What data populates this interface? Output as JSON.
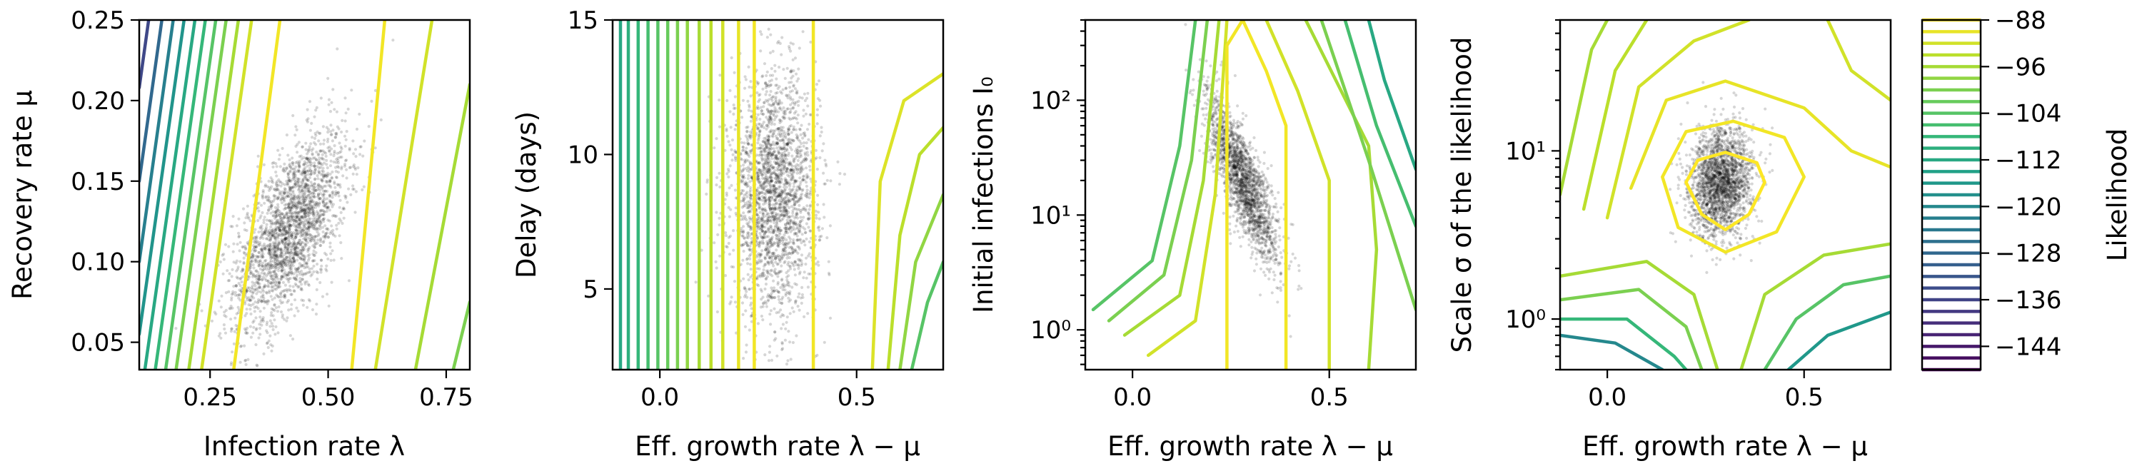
{
  "chart_data": [
    {
      "type": "scatter",
      "xlabel": "Infection rate λ",
      "ylabel": "Recovery rate μ",
      "xlim": [
        0.1,
        0.8
      ],
      "ylim": [
        0.033,
        0.25
      ],
      "xscale": "linear",
      "yscale": "linear",
      "xticks": [
        0.25,
        0.5,
        0.75
      ],
      "xtick_labels": [
        "0.25",
        "0.50",
        "0.75"
      ],
      "yticks": [
        0.05,
        0.1,
        0.15,
        0.2,
        0.25
      ],
      "ytick_labels": [
        "0.05",
        "0.10",
        "0.15",
        "0.20",
        "0.25"
      ],
      "samples": {
        "center": [
          0.42,
          0.12
        ],
        "spread": [
          0.06,
          0.03
        ],
        "correlation": 0.6,
        "count": 2400
      },
      "contours": [
        {
          "level": -135,
          "points": [
            [
              0.1,
              0.208
            ],
            [
              0.12,
              0.25
            ]
          ]
        },
        {
          "level": -128,
          "points": [
            [
              0.1,
              0.15
            ],
            [
              0.148,
              0.25
            ]
          ]
        },
        {
          "level": -122,
          "points": [
            [
              0.1,
              0.1
            ],
            [
              0.172,
              0.25
            ]
          ]
        },
        {
          "level": -117,
          "points": [
            [
              0.1,
              0.055
            ],
            [
              0.195,
              0.25
            ]
          ]
        },
        {
          "level": -112,
          "points": [
            [
              0.112,
              0.033
            ],
            [
              0.218,
              0.25
            ]
          ]
        },
        {
          "level": -108,
          "points": [
            [
              0.134,
              0.033
            ],
            [
              0.24,
              0.25
            ]
          ]
        },
        {
          "level": -104,
          "points": [
            [
              0.156,
              0.033
            ],
            [
              0.262,
              0.25
            ]
          ]
        },
        {
          "level": -100,
          "points": [
            [
              0.178,
              0.033
            ],
            [
              0.284,
              0.25
            ]
          ]
        },
        {
          "level": -96,
          "points": [
            [
              0.205,
              0.033
            ],
            [
              0.31,
              0.25
            ]
          ]
        },
        {
          "level": -92,
          "points": [
            [
              0.232,
              0.033
            ],
            [
              0.338,
              0.25
            ]
          ]
        },
        {
          "level": -89,
          "points": [
            [
              0.3,
              0.033
            ],
            [
              0.398,
              0.25
            ]
          ]
        },
        {
          "level": -89,
          "points": [
            [
              0.55,
              0.033
            ],
            [
              0.62,
              0.25
            ]
          ]
        },
        {
          "level": -92,
          "points": [
            [
              0.6,
              0.033
            ],
            [
              0.72,
              0.25
            ]
          ]
        },
        {
          "level": -96,
          "points": [
            [
              0.685,
              0.033
            ],
            [
              0.8,
              0.21
            ]
          ]
        },
        {
          "level": -100,
          "points": [
            [
              0.765,
              0.033
            ],
            [
              0.8,
              0.075
            ]
          ]
        }
      ]
    },
    {
      "type": "scatter",
      "xlabel": "Eff. growth rate λ − μ",
      "ylabel": "Delay (days)",
      "xlim": [
        -0.12,
        0.72
      ],
      "ylim": [
        2,
        15
      ],
      "xscale": "linear",
      "yscale": "linear",
      "xticks": [
        0.0,
        0.5
      ],
      "xtick_labels": [
        "0.0",
        "0.5"
      ],
      "yticks": [
        5,
        10,
        15
      ],
      "ytick_labels": [
        "5",
        "10",
        "15"
      ],
      "samples": {
        "center": [
          0.29,
          8.5
        ],
        "spread": [
          0.055,
          2.2
        ],
        "correlation": 0.0,
        "count": 2400
      },
      "contours": [
        {
          "level": -112,
          "points": [
            [
              -0.1,
              2
            ],
            [
              -0.1,
              15
            ]
          ]
        },
        {
          "level": -110,
          "points": [
            [
              -0.08,
              2
            ],
            [
              -0.08,
              15
            ]
          ]
        },
        {
          "level": -108,
          "points": [
            [
              -0.055,
              2
            ],
            [
              -0.055,
              15
            ]
          ]
        },
        {
          "level": -106,
          "points": [
            [
              -0.03,
              2
            ],
            [
              -0.03,
              15
            ]
          ]
        },
        {
          "level": -104,
          "points": [
            [
              -0.005,
              2
            ],
            [
              -0.005,
              15
            ]
          ]
        },
        {
          "level": -102,
          "points": [
            [
              0.02,
              2
            ],
            [
              0.02,
              15
            ]
          ]
        },
        {
          "level": -100,
          "points": [
            [
              0.045,
              2
            ],
            [
              0.045,
              15
            ]
          ]
        },
        {
          "level": -98,
          "points": [
            [
              0.07,
              2
            ],
            [
              0.07,
              15
            ]
          ]
        },
        {
          "level": -96,
          "points": [
            [
              0.1,
              2
            ],
            [
              0.1,
              15
            ]
          ]
        },
        {
          "level": -94,
          "points": [
            [
              0.13,
              2
            ],
            [
              0.13,
              15
            ]
          ]
        },
        {
          "level": -92,
          "points": [
            [
              0.16,
              2
            ],
            [
              0.16,
              15
            ]
          ]
        },
        {
          "level": -90,
          "points": [
            [
              0.2,
              2
            ],
            [
              0.2,
              15
            ]
          ]
        },
        {
          "level": -89,
          "points": [
            [
              0.24,
              2
            ],
            [
              0.24,
              15
            ]
          ]
        },
        {
          "level": -89,
          "points": [
            [
              0.39,
              2
            ],
            [
              0.39,
              15
            ]
          ]
        },
        {
          "level": -91,
          "points": [
            [
              0.54,
              2
            ],
            [
              0.56,
              9
            ],
            [
              0.62,
              12
            ],
            [
              0.72,
              13
            ]
          ]
        },
        {
          "level": -94,
          "points": [
            [
              0.58,
              2
            ],
            [
              0.61,
              7
            ],
            [
              0.66,
              10
            ],
            [
              0.72,
              11
            ]
          ]
        },
        {
          "level": -98,
          "points": [
            [
              0.61,
              2
            ],
            [
              0.65,
              6
            ],
            [
              0.72,
              8.5
            ]
          ]
        },
        {
          "level": -104,
          "points": [
            [
              0.64,
              2
            ],
            [
              0.68,
              4.5
            ],
            [
              0.72,
              6
            ]
          ]
        }
      ]
    },
    {
      "type": "scatter",
      "xlabel": "Eff. growth rate λ − μ",
      "ylabel": "Initial infections I₀",
      "xlim": [
        -0.12,
        0.72
      ],
      "ylim": [
        0.45,
        500
      ],
      "xscale": "linear",
      "yscale": "log",
      "xticks": [
        0.0,
        0.5
      ],
      "xtick_labels": [
        "0.0",
        "0.5"
      ],
      "yticks": [
        1,
        10,
        100
      ],
      "ytick_labels": [
        "10⁰",
        "10¹",
        "10²"
      ],
      "samples": {
        "center": [
          0.28,
          20
        ],
        "spread": [
          0.045,
          0.35
        ],
        "correlation": -0.8,
        "count": 2000
      },
      "contours": [
        {
          "level": -104,
          "points": [
            [
              -0.1,
              1.5
            ],
            [
              0.05,
              4
            ],
            [
              0.12,
              40
            ],
            [
              0.16,
              500
            ]
          ]
        },
        {
          "level": -100,
          "points": [
            [
              -0.06,
              1.2
            ],
            [
              0.08,
              3
            ],
            [
              0.15,
              30
            ],
            [
              0.19,
              500
            ]
          ]
        },
        {
          "level": -96,
          "points": [
            [
              -0.02,
              0.9
            ],
            [
              0.12,
              2
            ],
            [
              0.18,
              20
            ],
            [
              0.22,
              500
            ]
          ]
        },
        {
          "level": -92,
          "points": [
            [
              0.04,
              0.6
            ],
            [
              0.16,
              1.2
            ],
            [
              0.21,
              15
            ],
            [
              0.24,
              500
            ]
          ]
        },
        {
          "level": -89,
          "points": [
            [
              0.24,
              0.45
            ],
            [
              0.24,
              300
            ],
            [
              0.28,
              500
            ]
          ]
        },
        {
          "level": -89,
          "points": [
            [
              0.39,
              0.45
            ],
            [
              0.39,
              60
            ],
            [
              0.34,
              180
            ],
            [
              0.28,
              500
            ]
          ]
        },
        {
          "level": -92,
          "points": [
            [
              0.5,
              0.45
            ],
            [
              0.5,
              20
            ],
            [
              0.42,
              120
            ],
            [
              0.34,
              500
            ]
          ]
        },
        {
          "level": -96,
          "points": [
            [
              0.6,
              0.45
            ],
            [
              0.62,
              5
            ],
            [
              0.6,
              40
            ],
            [
              0.44,
              500
            ]
          ]
        },
        {
          "level": -100,
          "points": [
            [
              0.72,
              1.5
            ],
            [
              0.6,
              30
            ],
            [
              0.48,
              500
            ]
          ]
        },
        {
          "level": -106,
          "points": [
            [
              0.72,
              8
            ],
            [
              0.62,
              60
            ],
            [
              0.54,
              500
            ]
          ]
        },
        {
          "level": -112,
          "points": [
            [
              0.72,
              25
            ],
            [
              0.64,
              150
            ],
            [
              0.6,
              500
            ]
          ]
        }
      ]
    },
    {
      "type": "scatter",
      "xlabel": "Eff. growth rate λ − μ",
      "ylabel": "Scale σ of the likelihood",
      "xlim": [
        -0.12,
        0.72
      ],
      "ylim": [
        0.5,
        60
      ],
      "xscale": "linear",
      "yscale": "log",
      "xticks": [
        0.0,
        0.5
      ],
      "xtick_labels": [
        "0.0",
        "0.5"
      ],
      "yticks": [
        1,
        10
      ],
      "ytick_labels": [
        "10⁰",
        "10¹"
      ],
      "samples": {
        "center": [
          0.29,
          6.5
        ],
        "spread": [
          0.04,
          0.16
        ],
        "correlation": 0.1,
        "count": 2200
      },
      "contours": [
        {
          "level": -88,
          "closed": true,
          "points": [
            [
              0.2,
              6.5
            ],
            [
              0.23,
              8.8
            ],
            [
              0.3,
              9.8
            ],
            [
              0.38,
              8.5
            ],
            [
              0.4,
              6.5
            ],
            [
              0.36,
              4.2
            ],
            [
              0.3,
              3.4
            ],
            [
              0.24,
              4.2
            ]
          ]
        },
        {
          "level": -89,
          "closed": true,
          "points": [
            [
              0.14,
              7
            ],
            [
              0.2,
              13
            ],
            [
              0.32,
              15
            ],
            [
              0.45,
              12
            ],
            [
              0.5,
              7
            ],
            [
              0.43,
              3.3
            ],
            [
              0.3,
              2.5
            ],
            [
              0.18,
              3.5
            ]
          ]
        },
        {
          "level": -90,
          "points": [
            [
              0.06,
              6
            ],
            [
              0.15,
              20
            ],
            [
              0.3,
              26
            ],
            [
              0.5,
              18
            ],
            [
              0.62,
              10
            ],
            [
              0.72,
              8
            ]
          ]
        },
        {
          "level": -92,
          "points": [
            [
              0.0,
              4
            ],
            [
              0.08,
              24
            ],
            [
              0.22,
              45
            ],
            [
              0.36,
              60
            ]
          ]
        },
        {
          "level": -94,
          "points": [
            [
              -0.06,
              4.5
            ],
            [
              0.02,
              30
            ],
            [
              0.1,
              60
            ]
          ]
        },
        {
          "level": -96,
          "points": [
            [
              -0.12,
              5.5
            ],
            [
              -0.04,
              40
            ],
            [
              0.0,
              60
            ]
          ]
        },
        {
          "level": -92,
          "points": [
            [
              0.56,
              60
            ],
            [
              0.62,
              30
            ],
            [
              0.72,
              20
            ]
          ]
        },
        {
          "level": -96,
          "points": [
            [
              -0.12,
              1.8
            ],
            [
              0.1,
              2.2
            ],
            [
              0.22,
              1.4
            ],
            [
              0.28,
              0.5
            ]
          ]
        },
        {
          "level": -100,
          "points": [
            [
              -0.12,
              1.3
            ],
            [
              0.08,
              1.5
            ],
            [
              0.2,
              0.9
            ],
            [
              0.24,
              0.5
            ]
          ]
        },
        {
          "level": -108,
          "points": [
            [
              -0.12,
              1.0
            ],
            [
              0.05,
              1.0
            ],
            [
              0.17,
              0.6
            ],
            [
              0.2,
              0.5
            ]
          ]
        },
        {
          "level": -120,
          "points": [
            [
              -0.12,
              0.8
            ],
            [
              0.02,
              0.72
            ],
            [
              0.14,
              0.5
            ]
          ]
        },
        {
          "level": -96,
          "points": [
            [
              0.34,
              0.5
            ],
            [
              0.4,
              1.4
            ],
            [
              0.55,
              2.4
            ],
            [
              0.72,
              2.8
            ]
          ]
        },
        {
          "level": -104,
          "points": [
            [
              0.4,
              0.5
            ],
            [
              0.48,
              1.0
            ],
            [
              0.6,
              1.6
            ],
            [
              0.72,
              1.8
            ]
          ]
        },
        {
          "level": -116,
          "points": [
            [
              0.46,
              0.5
            ],
            [
              0.56,
              0.8
            ],
            [
              0.72,
              1.1
            ]
          ]
        }
      ]
    }
  ],
  "colorbar": {
    "label": "Likelihood",
    "range": [
      -148,
      -88
    ],
    "ticks": [
      -88,
      -96,
      -104,
      -112,
      -120,
      -128,
      -136,
      -144
    ],
    "tick_labels": [
      "−88",
      "−96",
      "−104",
      "−112",
      "−120",
      "−128",
      "−136",
      "−144"
    ]
  }
}
